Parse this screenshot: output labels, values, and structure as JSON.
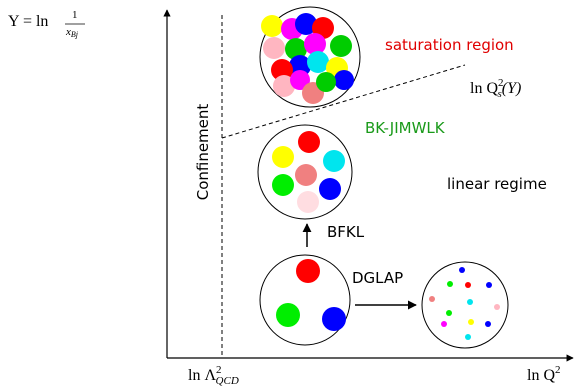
{
  "y_axis_label": {
    "lhs": "Y = ln",
    "numerator": "1",
    "denominator": "x",
    "denominator_sub": "Bj"
  },
  "x_axis_label": {
    "main": "ln Q",
    "sup": "2"
  },
  "lambda_label": {
    "main": "ln Λ",
    "sup": "2",
    "sub": "QCD"
  },
  "saturation_line_label": {
    "main": "ln Q",
    "sup": "2",
    "sub": "s",
    "arg": "(Y)"
  },
  "regions": {
    "saturation": "saturation region",
    "bk_jimwlk": "BK-JIMWLK",
    "linear": "linear regime",
    "confinement": "Confinement"
  },
  "evolutions": {
    "bfkl": "BFKL",
    "dglap": "DGLAP"
  }
}
